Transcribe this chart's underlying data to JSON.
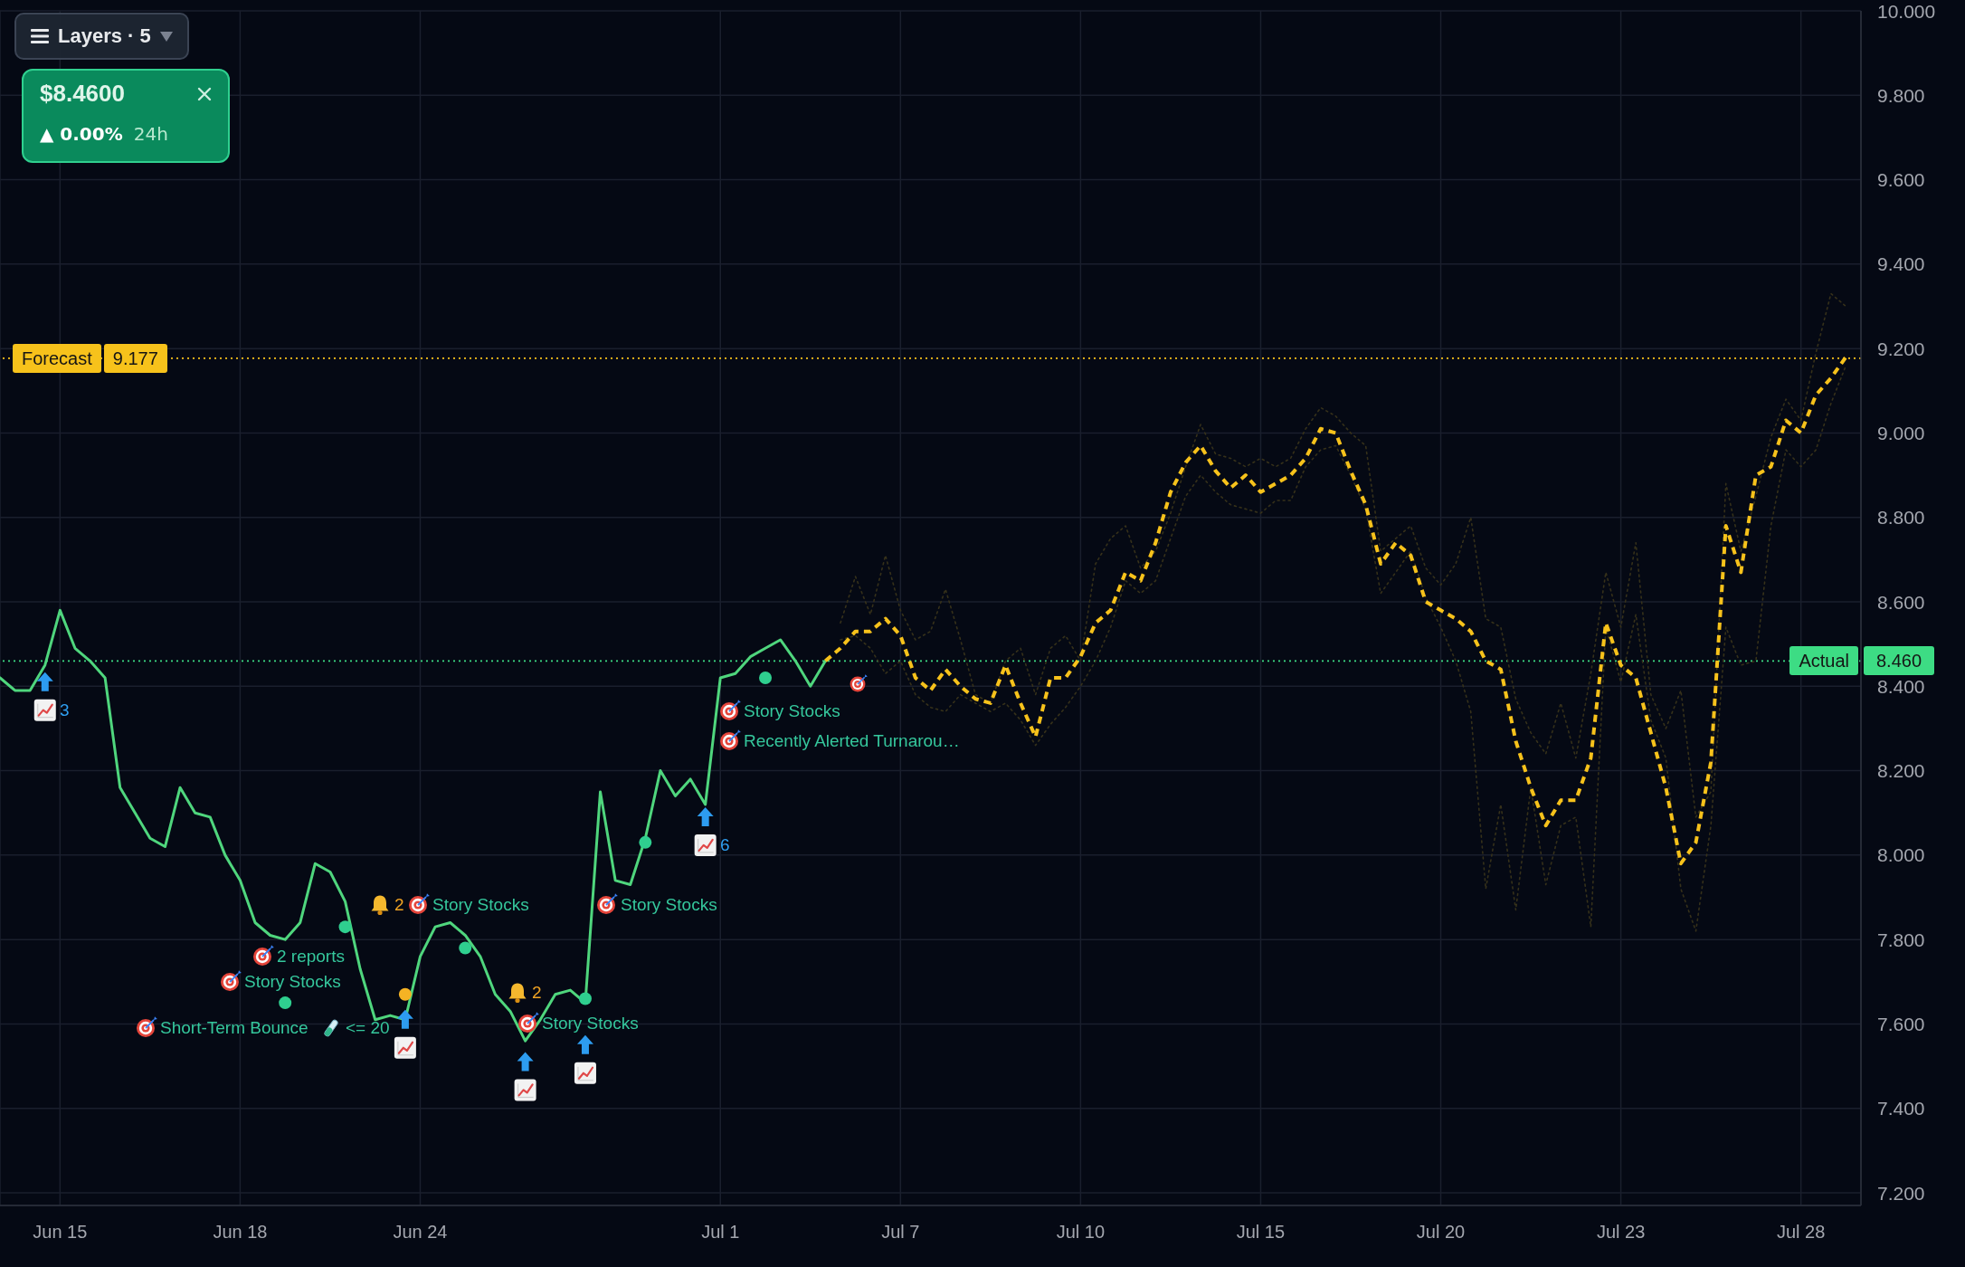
{
  "chart_data": {
    "type": "line",
    "categories": [
      null,
      null,
      null,
      null,
      "Jun 15",
      null,
      null,
      null,
      null,
      null,
      null,
      null,
      null,
      null,
      null,
      null,
      "Jun 18",
      null,
      null,
      null,
      null,
      null,
      null,
      null,
      null,
      null,
      null,
      null,
      "Jun 24",
      null,
      null,
      null,
      null,
      null,
      null,
      null,
      null,
      null,
      null,
      null,
      null,
      null,
      null,
      null,
      null,
      null,
      null,
      null,
      "Jul 1",
      null,
      null,
      null,
      null,
      null,
      null,
      null,
      null,
      null,
      null,
      null,
      "Jul 7",
      null,
      null,
      null,
      null,
      null,
      null,
      null,
      null,
      null,
      null,
      null,
      "Jul 10",
      null,
      null,
      null,
      null,
      null,
      null,
      null,
      null,
      null,
      null,
      null,
      "Jul 15",
      null,
      null,
      null,
      null,
      null,
      null,
      null,
      null,
      null,
      null,
      null,
      "Jul 20",
      null,
      null,
      null,
      null,
      null,
      null,
      null,
      null,
      null,
      null,
      null,
      "Jul 23",
      null,
      null,
      null,
      null,
      null,
      null,
      null,
      null,
      null,
      null,
      null,
      "Jul 28",
      null,
      null,
      null,
      null
    ],
    "ylim": [
      7.17,
      10.0
    ],
    "yticks": [
      {
        "value": 7.2,
        "label": "7.200"
      },
      {
        "value": 7.4,
        "label": "7.400"
      },
      {
        "value": 7.6,
        "label": "7.600"
      },
      {
        "value": 7.8,
        "label": "7.800"
      },
      {
        "value": 8.0,
        "label": "8.000"
      },
      {
        "value": 8.2,
        "label": "8.200"
      },
      {
        "value": 8.4,
        "label": "8.400"
      },
      {
        "value": 8.6,
        "label": "8.600"
      },
      {
        "value": 8.8,
        "label": "8.800"
      },
      {
        "value": 9.0,
        "label": "9.000"
      },
      {
        "value": 9.2,
        "label": "9.200"
      },
      {
        "value": 9.4,
        "label": "9.400"
      },
      {
        "value": 9.6,
        "label": "9.600"
      },
      {
        "value": 9.8,
        "label": "9.800"
      },
      {
        "value": 10.0,
        "label": "10.000"
      }
    ],
    "grid": true,
    "series": [
      {
        "color": "#36311a",
        "line_style": "dotted",
        "values": [
          null,
          null,
          null,
          null,
          null,
          null,
          null,
          null,
          null,
          null,
          null,
          null,
          null,
          null,
          null,
          null,
          null,
          null,
          null,
          null,
          null,
          null,
          null,
          null,
          null,
          null,
          null,
          null,
          null,
          null,
          null,
          null,
          null,
          null,
          null,
          null,
          null,
          null,
          null,
          null,
          null,
          null,
          null,
          null,
          null,
          null,
          null,
          null,
          null,
          null,
          null,
          null,
          null,
          null,
          null,
          null,
          8.55,
          8.66,
          8.57,
          8.71,
          8.58,
          8.51,
          8.53,
          8.63,
          8.51,
          8.38,
          8.36,
          8.46,
          8.49,
          8.38,
          8.49,
          8.52,
          8.46,
          8.69,
          8.75,
          8.78,
          8.68,
          8.72,
          8.81,
          8.92,
          9.02,
          8.95,
          8.94,
          8.92,
          8.94,
          8.92,
          8.94,
          9.01,
          9.06,
          9.04,
          9,
          8.97,
          8.72,
          8.75,
          8.78,
          8.68,
          8.64,
          8.69,
          8.8,
          8.56,
          8.54,
          8.37,
          8.29,
          8.24,
          8.36,
          8.23,
          8.43,
          8.67,
          8.54,
          8.74,
          8.38,
          8.3,
          8.39,
          8.09,
          8.15,
          8.88,
          8.72,
          8.85,
          8.99,
          9.08,
          9.03,
          9.19,
          9.33,
          9.3,
          null
        ]
      },
      {
        "color": "#36311a",
        "line_style": "dotted",
        "values": [
          null,
          null,
          null,
          null,
          null,
          null,
          null,
          null,
          null,
          null,
          null,
          null,
          null,
          null,
          null,
          null,
          null,
          null,
          null,
          null,
          null,
          null,
          null,
          null,
          null,
          null,
          null,
          null,
          null,
          null,
          null,
          null,
          null,
          null,
          null,
          null,
          null,
          null,
          null,
          null,
          null,
          null,
          null,
          null,
          null,
          null,
          null,
          null,
          null,
          null,
          null,
          null,
          null,
          null,
          null,
          null,
          8.51,
          8.52,
          8.49,
          8.43,
          8.46,
          8.38,
          8.35,
          8.34,
          8.38,
          8.36,
          8.34,
          8.36,
          8.32,
          8.26,
          8.31,
          8.35,
          8.4,
          8.46,
          8.54,
          8.65,
          8.62,
          8.65,
          8.75,
          8.85,
          8.9,
          8.86,
          8.83,
          8.82,
          8.81,
          8.84,
          8.84,
          8.92,
          8.96,
          8.97,
          8.9,
          8.82,
          8.62,
          8.67,
          8.72,
          8.61,
          8.54,
          8.46,
          8.34,
          7.92,
          8.12,
          7.87,
          8.16,
          7.93,
          8.07,
          8.09,
          7.83,
          8.54,
          8.41,
          8.57,
          8.32,
          8.23,
          7.92,
          7.82,
          8.07,
          8.54,
          8.45,
          8.46,
          8.78,
          8.96,
          8.92,
          8.96,
          9.07,
          9.16,
          null
        ]
      },
      {
        "color": "#4fd67d",
        "line_style": "solid",
        "values": [
          8.42,
          8.39,
          8.39,
          8.45,
          8.58,
          8.49,
          8.46,
          8.42,
          8.16,
          8.1,
          8.04,
          8.02,
          8.16,
          8.1,
          8.09,
          8,
          7.94,
          7.84,
          7.81,
          7.8,
          7.84,
          7.98,
          7.96,
          7.89,
          7.73,
          7.61,
          7.62,
          7.61,
          7.76,
          7.83,
          7.84,
          7.81,
          7.76,
          7.67,
          7.63,
          7.56,
          7.61,
          7.67,
          7.68,
          7.65,
          8.15,
          7.94,
          7.93,
          8.04,
          8.2,
          8.14,
          8.18,
          8.12,
          8.42,
          8.43,
          8.47,
          8.49,
          8.51,
          8.46,
          8.4,
          8.46,
          null,
          null,
          null,
          null,
          null,
          null,
          null,
          null,
          null,
          null,
          null,
          null,
          null,
          null,
          null,
          null,
          null,
          null,
          null,
          null,
          null,
          null,
          null,
          null,
          null,
          null,
          null,
          null,
          null,
          null,
          null,
          null,
          null,
          null,
          null,
          null,
          null,
          null,
          null,
          null,
          null,
          null,
          null,
          null,
          null,
          null,
          null,
          null,
          null,
          null,
          null,
          null,
          null,
          null,
          null,
          null,
          null,
          null,
          null,
          null,
          null,
          null,
          null,
          null,
          null,
          null,
          null,
          null,
          null
        ]
      },
      {
        "color": "#f7c21b",
        "line_style": "dashed",
        "values": [
          null,
          null,
          null,
          null,
          null,
          null,
          null,
          null,
          null,
          null,
          null,
          null,
          null,
          null,
          null,
          null,
          null,
          null,
          null,
          null,
          null,
          null,
          null,
          null,
          null,
          null,
          null,
          null,
          null,
          null,
          null,
          null,
          null,
          null,
          null,
          null,
          null,
          null,
          null,
          null,
          null,
          null,
          null,
          null,
          null,
          null,
          null,
          null,
          null,
          null,
          null,
          null,
          null,
          null,
          null,
          8.46,
          8.49,
          8.53,
          8.53,
          8.56,
          8.52,
          8.42,
          8.39,
          8.44,
          8.4,
          8.37,
          8.36,
          8.45,
          8.36,
          8.28,
          8.42,
          8.42,
          8.47,
          8.55,
          8.58,
          8.67,
          8.65,
          8.74,
          8.86,
          8.93,
          8.97,
          8.91,
          8.87,
          8.9,
          8.86,
          8.88,
          8.9,
          8.94,
          9.01,
          9,
          8.91,
          8.83,
          8.69,
          8.74,
          8.71,
          8.6,
          8.58,
          8.56,
          8.53,
          8.46,
          8.44,
          8.27,
          8.16,
          8.07,
          8.13,
          8.13,
          8.23,
          8.55,
          8.45,
          8.42,
          8.29,
          8.16,
          7.98,
          8.03,
          8.22,
          8.78,
          8.67,
          8.9,
          8.92,
          9.03,
          9,
          9.09,
          9.13,
          9.18,
          null
        ]
      },
      {
        "type": "scatter",
        "color": "#2fcf8f",
        "marker": "circle",
        "values": [
          null,
          null,
          null,
          null,
          null,
          null,
          null,
          null,
          null,
          null,
          null,
          null,
          null,
          null,
          null,
          null,
          null,
          null,
          null,
          7.65,
          null,
          null,
          null,
          7.83,
          null,
          null,
          null,
          null,
          null,
          null,
          null,
          7.78,
          null,
          null,
          null,
          null,
          null,
          null,
          null,
          7.66,
          null,
          null,
          null,
          8.03,
          null,
          null,
          null,
          null,
          null,
          null,
          null,
          8.42,
          null,
          null,
          null,
          null,
          null,
          null,
          null,
          null,
          null,
          null,
          null,
          null,
          null,
          null,
          null,
          null,
          null,
          null,
          null,
          null,
          null,
          null,
          null,
          null,
          null,
          null,
          null,
          null,
          null,
          null,
          null,
          null,
          null,
          null,
          null,
          null,
          null,
          null,
          null,
          null,
          null,
          null,
          null,
          null,
          null,
          null,
          null,
          null,
          null,
          null,
          null,
          null,
          null,
          null,
          null,
          null,
          null,
          null,
          null,
          null,
          null,
          null,
          null,
          null,
          null,
          null,
          null,
          null,
          null,
          null,
          null,
          null,
          null
        ]
      },
      {
        "type": "scatter",
        "color": "#f5b324",
        "marker": "circle",
        "values": [
          null,
          null,
          null,
          null,
          null,
          null,
          null,
          null,
          null,
          null,
          null,
          null,
          null,
          null,
          null,
          null,
          null,
          null,
          null,
          null,
          null,
          null,
          null,
          null,
          null,
          null,
          null,
          7.67,
          null,
          null,
          null,
          null,
          null,
          null,
          null,
          null,
          null,
          null,
          null,
          null,
          null,
          null,
          null,
          null,
          null,
          null,
          null,
          null,
          null,
          null,
          null,
          null,
          null,
          null,
          null,
          null,
          null,
          null,
          null,
          null,
          null,
          null,
          null,
          null,
          null,
          null,
          null,
          null,
          null,
          null,
          null,
          null,
          null,
          null,
          null,
          null,
          null,
          null,
          null,
          null,
          null,
          null,
          null,
          null,
          null,
          null,
          null,
          null,
          null,
          null,
          null,
          null,
          null,
          null,
          null,
          null,
          null,
          null,
          null,
          null,
          null,
          null,
          null,
          null,
          null,
          null,
          null,
          null,
          null,
          null,
          null,
          null,
          null,
          null,
          null,
          null,
          null,
          null,
          null,
          null,
          null,
          null,
          null,
          null,
          null
        ]
      },
      {
        "type": "scatter",
        "color": "#2d9cf0",
        "marker": "triangle",
        "values": [
          null,
          null,
          null,
          8.41,
          null,
          null,
          null,
          null,
          null,
          null,
          null,
          null,
          null,
          null,
          null,
          null,
          null,
          null,
          null,
          null,
          null,
          null,
          null,
          null,
          null,
          null,
          null,
          7.61,
          null,
          null,
          null,
          null,
          null,
          null,
          null,
          7.51,
          null,
          null,
          null,
          7.55,
          null,
          null,
          null,
          null,
          null,
          null,
          null,
          8.09,
          null,
          null,
          null,
          null,
          null,
          null,
          null,
          null,
          null,
          null,
          null,
          null,
          null,
          null,
          null,
          null,
          null,
          null,
          null,
          null,
          null,
          null,
          null,
          null,
          null,
          null,
          null,
          null,
          null,
          null,
          null,
          null,
          null,
          null,
          null,
          null,
          null,
          null,
          null,
          null,
          null,
          null,
          null,
          null,
          null,
          null,
          null,
          null,
          null,
          null,
          null,
          null,
          null,
          null,
          null,
          null,
          null,
          null,
          null,
          null,
          null,
          null,
          null,
          null,
          null,
          null,
          null,
          null,
          null,
          null,
          null,
          null,
          null,
          null,
          null,
          null,
          null
        ]
      }
    ],
    "ref_lines": [
      {
        "axis": "y",
        "value": 9.177,
        "label": "Forecast",
        "color": "#f7c21b",
        "line_style": "dotted"
      },
      {
        "axis": "y",
        "value": 8.46,
        "label": "Actual",
        "color": "#3ddc84",
        "line_style": "dotted"
      }
    ],
    "annotations": [
      "Short-Term Bounce",
      "Story Stocks",
      "2 reports",
      "<= 20",
      "2",
      "Story Stocks",
      "2",
      "Story Stocks",
      "Story Stocks",
      "Story Stocks",
      "Recently Alerted Turnarou…",
      "3",
      "6",
      "Layers · 5",
      "$8.4600",
      "▲ 0.00%",
      "24h",
      "9.177",
      "8.460"
    ]
  }
}
